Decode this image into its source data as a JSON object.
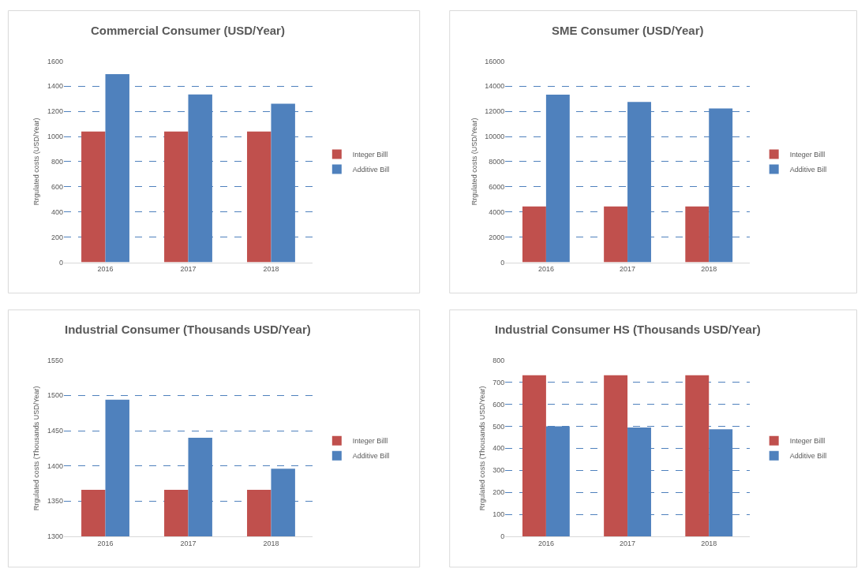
{
  "chart_data": [
    {
      "type": "bar",
      "title": "Commercial Consumer (USD/Year)",
      "ylabel": "Rrgulated costs (USD/Year)",
      "categories": [
        "2016",
        "2017",
        "2018"
      ],
      "series": [
        {
          "name": "Integer Billl",
          "color": "#c0504d",
          "values": [
            1040,
            1040,
            1040
          ]
        },
        {
          "name": "Additive Bill",
          "color": "#4f81bd",
          "values": [
            1495,
            1335,
            1260
          ]
        }
      ],
      "ylim": [
        0,
        1600
      ],
      "yticks": [
        0,
        200,
        400,
        600,
        800,
        1000,
        1200,
        1400,
        1600
      ],
      "grid": "y",
      "legend": "right"
    },
    {
      "type": "bar",
      "title": "SME Consumer (USD/Year)",
      "ylabel": "Rrgulated costs (USD/Year)",
      "categories": [
        "2016",
        "2017",
        "2018"
      ],
      "series": [
        {
          "name": "Integer Billl",
          "color": "#c0504d",
          "values": [
            4440,
            4440,
            4440
          ]
        },
        {
          "name": "Additive Bill",
          "color": "#4f81bd",
          "values": [
            13330,
            12740,
            12230
          ]
        }
      ],
      "ylim": [
        0,
        16000
      ],
      "yticks": [
        0,
        2000,
        4000,
        6000,
        8000,
        10000,
        12000,
        14000,
        16000
      ],
      "grid": "y",
      "legend": "right"
    },
    {
      "type": "bar",
      "title": "Industrial Consumer (Thousands USD/Year)",
      "ylabel": "Rrgulated costs (Thousands USD/Year)",
      "categories": [
        "2016",
        "2017",
        "2018"
      ],
      "series": [
        {
          "name": "Integer Billl",
          "color": "#c0504d",
          "values": [
            1366,
            1366,
            1366
          ]
        },
        {
          "name": "Additive Bill",
          "color": "#4f81bd",
          "values": [
            1494,
            1440,
            1396
          ]
        }
      ],
      "ylim": [
        1300,
        1550
      ],
      "yticks": [
        1300,
        1350,
        1400,
        1450,
        1500,
        1550
      ],
      "grid": "y",
      "legend": "right"
    },
    {
      "type": "bar",
      "title": "Industrial Consumer HS (Thousands USD/Year)",
      "ylabel": "Rrgulated costs (Thousands USD/Year)",
      "categories": [
        "2016",
        "2017",
        "2018"
      ],
      "series": [
        {
          "name": "Integer Billl",
          "color": "#c0504d",
          "values": [
            732,
            732,
            732
          ]
        },
        {
          "name": "Additive Bill",
          "color": "#4f81bd",
          "values": [
            500,
            494,
            486
          ]
        }
      ],
      "ylim": [
        0,
        800
      ],
      "yticks": [
        0,
        100,
        200,
        300,
        400,
        500,
        600,
        700,
        800
      ],
      "grid": "y",
      "legend": "right"
    }
  ]
}
